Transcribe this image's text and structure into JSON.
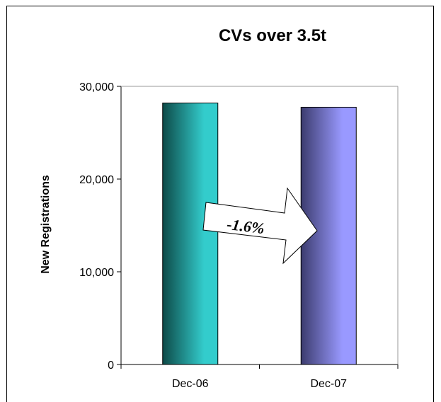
{
  "chart_data": {
    "type": "bar",
    "title": "CVs over 3.5t",
    "xlabel": "",
    "ylabel": "New Registrations",
    "categories": [
      "Dec-06",
      "Dec-07"
    ],
    "values": [
      28200,
      27750
    ],
    "ylim": [
      0,
      30000
    ],
    "yticks": [
      0,
      10000,
      20000,
      30000
    ],
    "ytick_labels": [
      "0",
      "10,000",
      "20,000",
      "30,000"
    ],
    "grid": false,
    "legend": "none",
    "bar_colors": [
      {
        "dark": "#0d4a48",
        "light": "#33cccc"
      },
      {
        "dark": "#3c3c6e",
        "light": "#9999ff"
      }
    ],
    "annotation": {
      "text": "-1.6%",
      "shape": "arrow-right"
    }
  }
}
